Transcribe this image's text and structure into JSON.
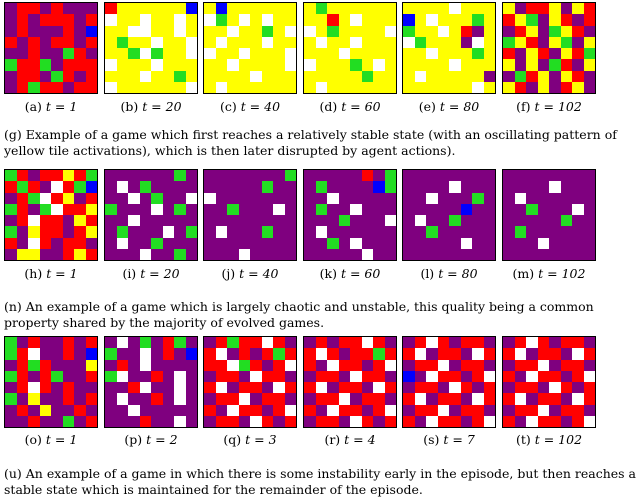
{
  "colors": {
    "W": "#ffffff",
    "Y": "#ffff00",
    "G": "#22dd22",
    "R": "#ff0000",
    "P": "#7f007f",
    "B": "#0000ff"
  },
  "rows": [
    {
      "panels": [
        {
          "letter": "(a)",
          "t": "t = 1"
        },
        {
          "letter": "(b)",
          "t": "t = 20"
        },
        {
          "letter": "(c)",
          "t": "t = 40"
        },
        {
          "letter": "(d)",
          "t": "t = 60"
        },
        {
          "letter": "(e)",
          "t": "t = 80"
        },
        {
          "letter": "(f)",
          "t": "t = 102"
        }
      ],
      "grids": [
        [
          "PRRPRPPP",
          "PRPRRRPR",
          "PRPPPRPB",
          "RPRPRRPR",
          "PPRPPGRP",
          "GRRGPRRR",
          "PRRPGRPR",
          "PRGRRPRR"
        ],
        [
          "RYYYYYYB",
          "WYYWYYWY",
          "YYWWYYWY",
          "YGYYWYYW",
          "YYGWGYYW",
          "WYYYWYYY",
          "YYYWYYGY",
          "WYYYYYYW"
        ],
        [
          "YBYYYYYY",
          "WGYWYWYY",
          "YYWYYGYW",
          "YWYYYWYY",
          "WYYWYYYW",
          "YYWYYYYW",
          "YYYYWYYY",
          "YWYYYYYY"
        ],
        [
          "YGYYYYYY",
          "YYRYWYYY",
          "WYGYYYYW",
          "YWYYWYYY",
          "YYYWYYYY",
          "WYYYGYWY",
          "YYYYYGYY",
          "YWYYYYYY"
        ],
        [
          "YYYYWYYY",
          "BYWYYYGY",
          "GYYWYRPY",
          "WGYYYPWY",
          "YYWYYYGY",
          "YYYYWYYY",
          "YWYYYYYP",
          "YYYYYYWY"
        ],
        [
          "YPRRYPYR",
          "RYGPYRPR",
          "PRYPGYRP",
          "GYRPYGPY",
          "RPYRPYRG",
          "YPYPGRPY",
          "PGRYPYRP",
          "YRPYPRYP"
        ]
      ]
    },
    {
      "panels": [
        {
          "letter": "(h)",
          "t": "t = 1"
        },
        {
          "letter": "(i)",
          "t": "t = 20"
        },
        {
          "letter": "(j)",
          "t": "t = 40"
        },
        {
          "letter": "(k)",
          "t": "t = 60"
        },
        {
          "letter": "(l)",
          "t": "t = 80"
        },
        {
          "letter": "(m)",
          "t": "t = 102"
        }
      ],
      "grids": [
        [
          "GRPRRYRG",
          "RGRPWRGB",
          "PRGWRYPR",
          "GRPGWRRY",
          "PRWRRPYR",
          "GPYRRPRY",
          "RPWRPRRP",
          "PYYPPRYR"
        ],
        [
          "PPPPPPGP",
          "PWPGPPPP",
          "PPWPGPPW",
          "GPPPWPGP",
          "PPWPPPPP",
          "PGPPPWPG",
          "PWPPGPPP",
          "PPPWPPGP"
        ],
        [
          "PPPPPPPG",
          "PPPPPGPP",
          "WPPPPPPP",
          "PPGPPPWP",
          "PPPPPPPP",
          "PWPPPGPP",
          "PPPPPPPP",
          "PPPWPPPP"
        ],
        [
          "PPPPPRPG",
          "PGPPPPBG",
          "PPWPPPPP",
          "PGPPWPPP",
          "PPPGPPPW",
          "PWPPPPPP",
          "PPGPWPPP",
          "PPPPPWPP"
        ],
        [
          "PPPPPPPP",
          "PPPPWPPP",
          "PPWPPPGP",
          "PPPPPBPP",
          "PWPPGPPP",
          "PPGPPPPP",
          "PPPPPWPP",
          "PPPPPPPP"
        ],
        [
          "PPPPPPPP",
          "PPPPWPPP",
          "PWPPPPPP",
          "PPGPPPWP",
          "PPPPPGPP",
          "PGPPPPPP",
          "PPPWPPPP",
          "PPPPPPPP"
        ]
      ]
    },
    {
      "panels": [
        {
          "letter": "(o)",
          "t": "t = 1"
        },
        {
          "letter": "(p)",
          "t": "t = 2"
        },
        {
          "letter": "(q)",
          "t": "t = 3"
        },
        {
          "letter": "(r)",
          "t": "t = 4"
        },
        {
          "letter": "(s)",
          "t": "t = 7"
        },
        {
          "letter": "(t)",
          "t": "t = 102"
        }
      ],
      "grids": [
        [
          "GPRPPRPR",
          "GRWPPRPB",
          "PRGRPPPY",
          "GRPRGPPR",
          "PRWRPRPP",
          "GPYPPRPR",
          "PRPYPPRP",
          "PPRPPGPR"
        ],
        [
          "PWPGPRGP",
          "GPPWPRPB",
          "PRPWPPPP",
          "GWPPRPWP",
          "PPRWPPWP",
          "PWPPRPWP",
          "PPWPPPPP",
          "PPPRPPWP"
        ],
        [
          "PRGRRWRP",
          "RWPRPRGR",
          "RRWGRPRW",
          "PRRPWRRP",
          "RWPRRPWR",
          "PRRWPRRP",
          "RPWRRPRW",
          "PRRPWRPR"
        ],
        [
          "PRPRRWRP",
          "RWRPRRGR",
          "RPWRRPRW",
          "PRRPWRRP",
          "RWPRRPWR",
          "PRRWPRRP",
          "RPWRRPRW",
          "PRRPWRPR"
        ],
        [
          "PRWRPRRP",
          "RWPRRPWR",
          "PRRWPRRP",
          "BPWRRPRW",
          "PRRPWRPR",
          "RWPRRPWR",
          "PRRWPRRP",
          "RPWRRPRW"
        ],
        [
          "PRWRPRRP",
          "RWPRRPWR",
          "PRRWPRRP",
          "RPWRRPRW",
          "PRRPWRPR",
          "RWPRRPWR",
          "PRRWPRRP",
          "RPWRRPRW"
        ]
      ]
    }
  ],
  "captions": [
    "(g) Example of a game which first reaches a relatively stable state (with an oscillating pattern of yellow tile activations), which is then later disrupted by agent actions).",
    "(n) An example of a game which is largely chaotic and unstable, this quality being a common property shared by the majority of evolved games.",
    "(u) An example of a game in which there is some instability early in the episode, but then reaches a stable state which is maintained for the remainder of the episode."
  ]
}
